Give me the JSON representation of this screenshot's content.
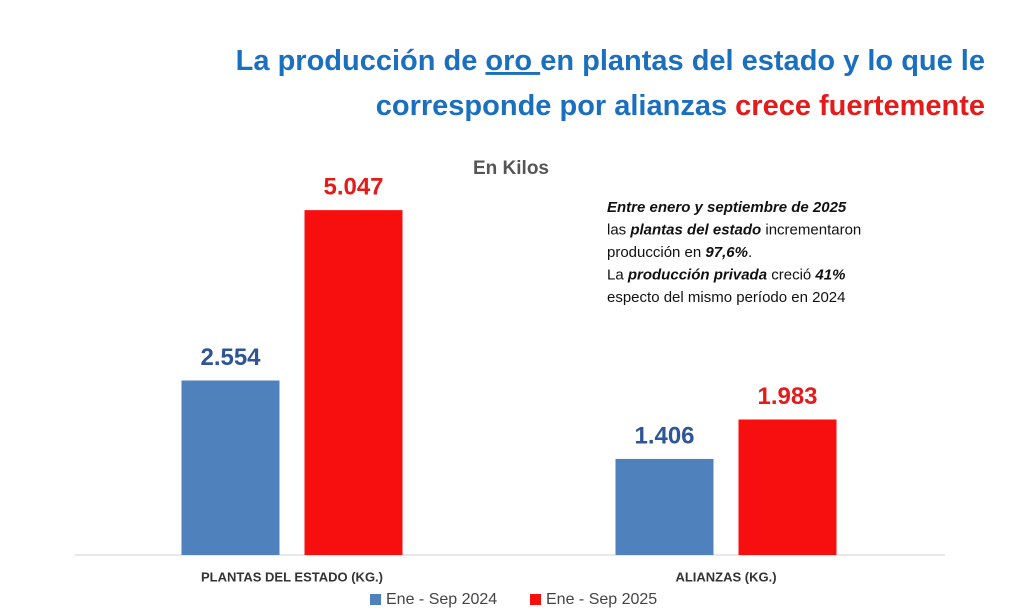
{
  "chart_data": {
    "type": "bar",
    "title": [
      "La producción de ",
      "oro ",
      "en plantas del estado y lo que le",
      "corresponde por alianzas ",
      "crece fuertemente"
    ],
    "subtitle": "En Kilos",
    "categories": [
      "PLANTAS DEL ESTADO (KG.)",
      "ALIANZAS (KG.)"
    ],
    "series": [
      {
        "name": "Ene - Sep 2024",
        "color": "#4f81bd",
        "label_color": "#2e5596",
        "values": [
          2554,
          1406
        ],
        "value_labels": [
          "2.554",
          "1.406"
        ]
      },
      {
        "name": "Ene - Sep 2025",
        "color": "#f70f0f",
        "label_color": "#e31b1b",
        "values": [
          5047,
          1983
        ],
        "value_labels": [
          "5.047",
          "1.983"
        ]
      }
    ],
    "ylim": [
      0,
      6000
    ],
    "annotation": [
      [
        {
          "text": "Entre enero y septiembre de 2025",
          "bold": true
        }
      ],
      [
        {
          "text": "las ",
          "bold": false
        },
        {
          "text": "plantas del estado",
          "bold": true
        },
        {
          "text": " incrementaron",
          "bold": false
        }
      ],
      [
        {
          "text": "producción en ",
          "bold": false
        },
        {
          "text": "97,6%",
          "bold": true
        },
        {
          "text": ".",
          "bold": false
        }
      ],
      [
        {
          "text": "La ",
          "bold": false
        },
        {
          "text": "producción privada",
          "bold": true
        },
        {
          "text": " creció ",
          "bold": false
        },
        {
          "text": "41%",
          "bold": true
        }
      ],
      [
        {
          "text": "especto del mismo período en 2024",
          "bold": false
        }
      ]
    ]
  }
}
